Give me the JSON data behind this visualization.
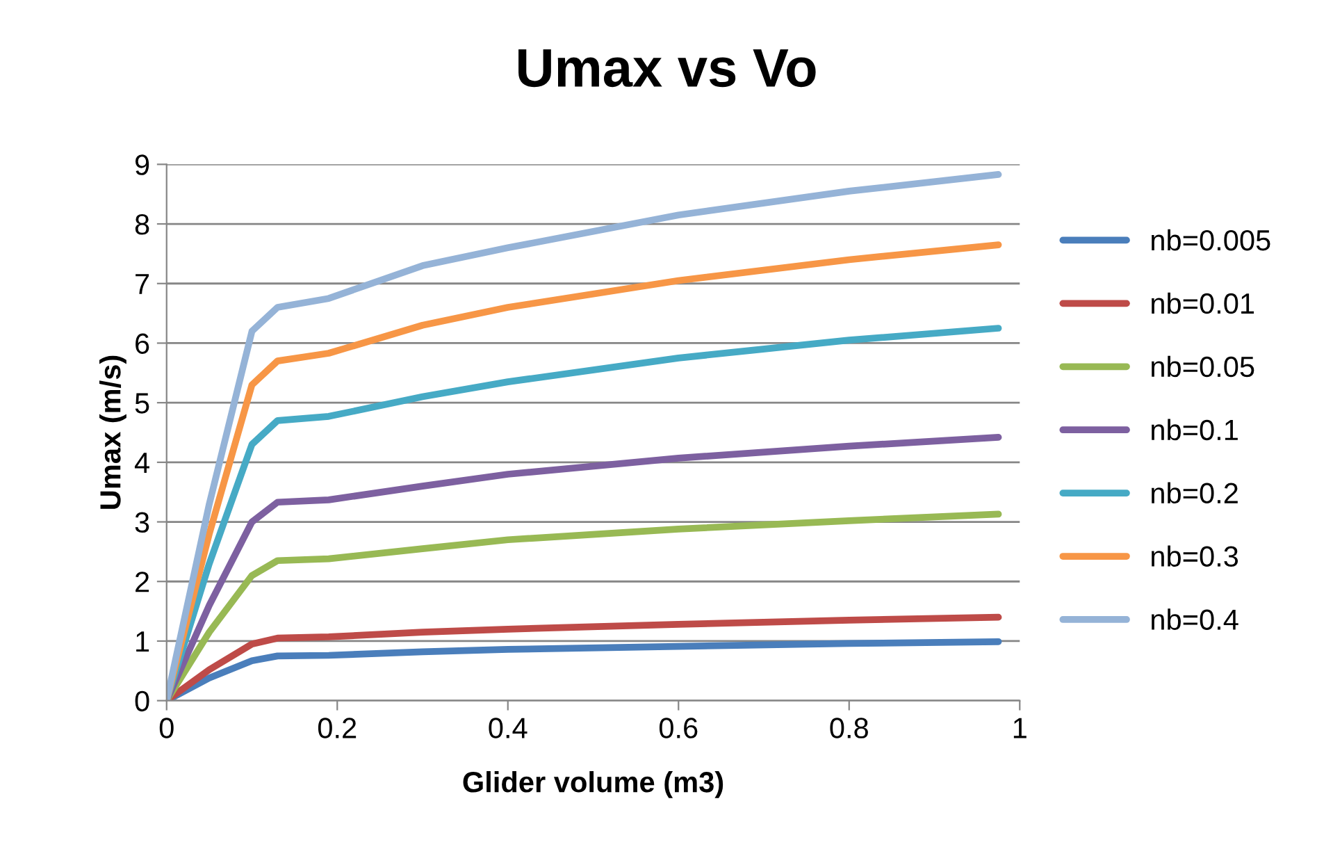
{
  "chart_data": {
    "type": "line",
    "title": "Umax vs Vo",
    "xlabel": "Glider volume (m3)",
    "ylabel": "Umax (m/s)",
    "x": [
      0,
      0.05,
      0.1,
      0.13,
      0.19,
      0.3,
      0.4,
      0.6,
      0.8,
      0.975
    ],
    "xlim": [
      0,
      1
    ],
    "xticks": [
      0,
      0.2,
      0.4,
      0.6,
      0.8,
      1
    ],
    "ylim": [
      0,
      9
    ],
    "yticks": [
      0,
      1,
      2,
      3,
      4,
      5,
      6,
      7,
      8,
      9
    ],
    "grid": "y",
    "legend": "right",
    "marker": "none",
    "line_style": "solid",
    "series": [
      {
        "name": "nb=0.005",
        "color": "#4a7ebb",
        "values": [
          0,
          0.38,
          0.67,
          0.75,
          0.76,
          0.82,
          0.86,
          0.91,
          0.96,
          0.99
        ]
      },
      {
        "name": "nb=0.01",
        "color": "#be4b48",
        "values": [
          0,
          0.52,
          0.95,
          1.05,
          1.07,
          1.15,
          1.2,
          1.28,
          1.35,
          1.4
        ]
      },
      {
        "name": "nb=0.05",
        "color": "#98b954",
        "values": [
          0,
          1.15,
          2.1,
          2.35,
          2.38,
          2.55,
          2.7,
          2.88,
          3.02,
          3.13
        ]
      },
      {
        "name": "nb=0.1",
        "color": "#7d60a0",
        "values": [
          0,
          1.6,
          3.0,
          3.33,
          3.37,
          3.6,
          3.8,
          4.07,
          4.27,
          4.42
        ]
      },
      {
        "name": "nb=0.2",
        "color": "#46aac5",
        "values": [
          0,
          2.3,
          4.3,
          4.7,
          4.77,
          5.1,
          5.35,
          5.75,
          6.05,
          6.25
        ]
      },
      {
        "name": "nb=0.3",
        "color": "#f79646",
        "values": [
          0,
          2.8,
          5.3,
          5.7,
          5.83,
          6.3,
          6.6,
          7.05,
          7.4,
          7.65
        ]
      },
      {
        "name": "nb=0.4",
        "color": "#95b3d7",
        "values": [
          0,
          3.3,
          6.2,
          6.6,
          6.75,
          7.3,
          7.6,
          8.15,
          8.55,
          8.83
        ]
      }
    ]
  }
}
